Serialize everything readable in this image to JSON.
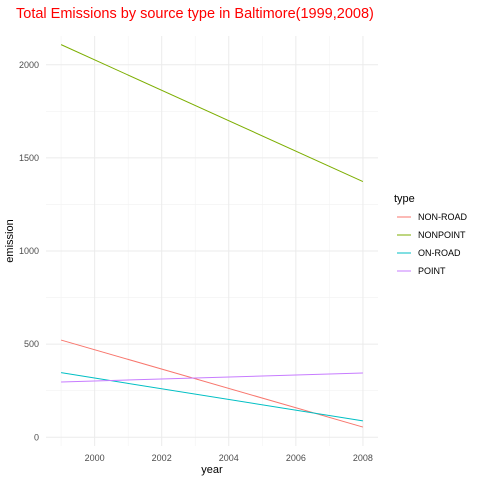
{
  "chart_data": {
    "type": "line",
    "title": "Total Emissions by source type in Baltimore(1999,2008)",
    "xlabel": "year",
    "ylabel": "emission",
    "xlim": [
      1999,
      2008
    ],
    "ylim": [
      0,
      2100
    ],
    "x_ticks": [
      2000,
      2002,
      2004,
      2006,
      2008
    ],
    "y_ticks": [
      0,
      500,
      1000,
      1500,
      2000
    ],
    "grid": true,
    "legend": {
      "title": "type",
      "placement": "right"
    },
    "series": [
      {
        "name": "NON-ROAD",
        "color": "#F8766D",
        "x": [
          1999,
          2008
        ],
        "y": [
          522,
          55
        ]
      },
      {
        "name": "NONPOINT",
        "color": "#7CAE00",
        "x": [
          1999,
          2008
        ],
        "y": [
          2108,
          1373
        ]
      },
      {
        "name": "ON-ROAD",
        "color": "#00BFC4",
        "x": [
          1999,
          2008
        ],
        "y": [
          347,
          88
        ]
      },
      {
        "name": "POINT",
        "color": "#C77CFF",
        "x": [
          1999,
          2008
        ],
        "y": [
          297,
          345
        ]
      }
    ]
  }
}
